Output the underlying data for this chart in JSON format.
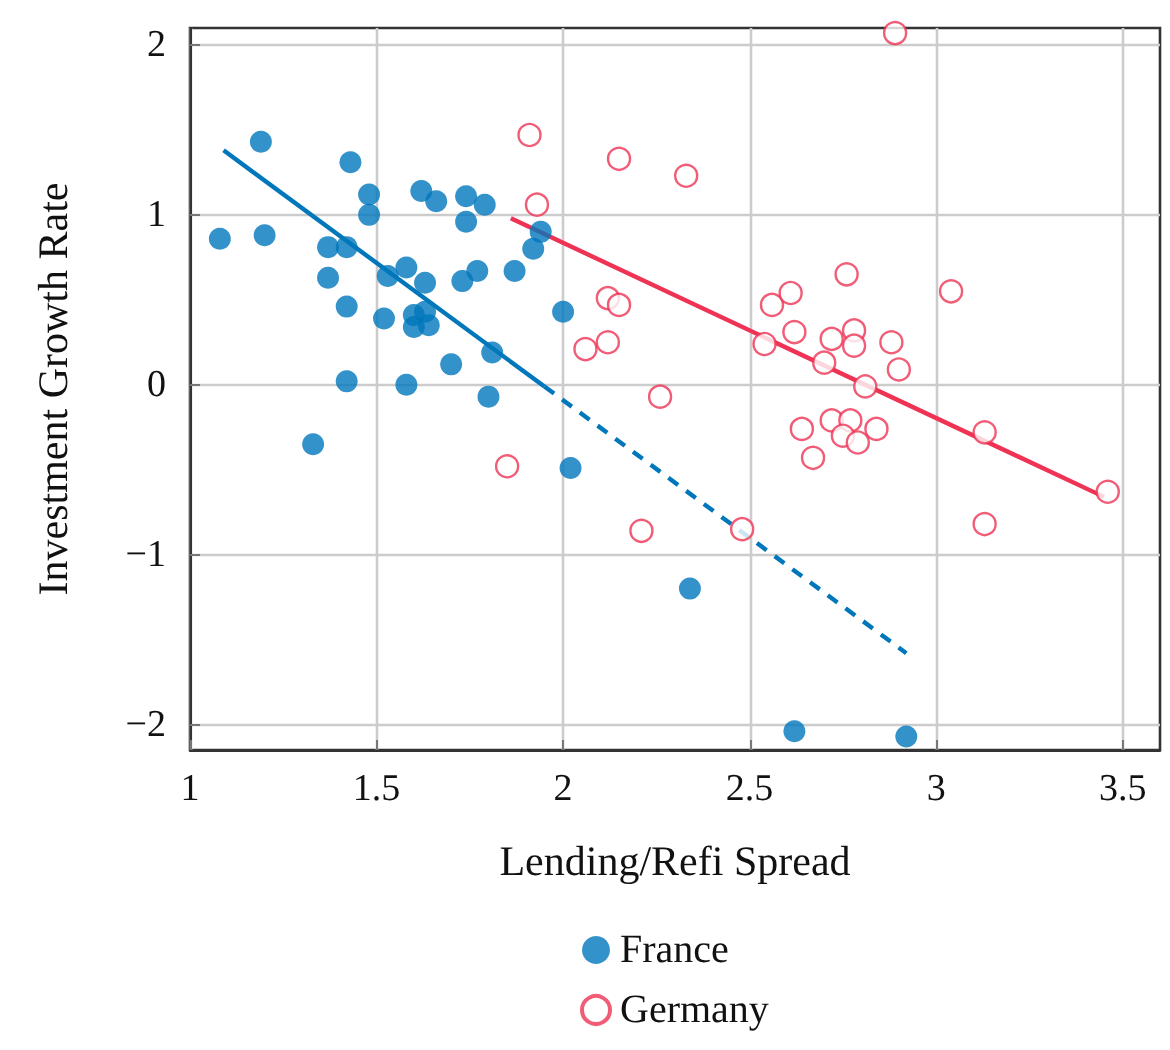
{
  "chart_data": {
    "type": "scatter",
    "xlabel": "Lending/Refi Spread",
    "ylabel": "Investment Growth Rate",
    "xlim": [
      1,
      3.6
    ],
    "ylim": [
      -2.15,
      2.1
    ],
    "xticks": [
      1,
      1.5,
      2,
      2.5,
      3,
      3.5
    ],
    "yticks": [
      {
        "value": -2,
        "label": "−2"
      },
      {
        "value": -1,
        "label": "−1"
      },
      0,
      1,
      2
    ],
    "grid": true,
    "legend": "bottom",
    "series": [
      {
        "name": "France",
        "color": "#0077bb",
        "marker": "circle",
        "x": [
          1.08,
          1.19,
          1.2,
          1.33,
          1.37,
          1.37,
          1.42,
          1.42,
          1.42,
          1.43,
          1.48,
          1.48,
          1.52,
          1.53,
          1.58,
          1.58,
          1.6,
          1.6,
          1.62,
          1.63,
          1.63,
          1.64,
          1.66,
          1.7,
          1.73,
          1.74,
          1.74,
          1.77,
          1.79,
          1.8,
          1.81,
          1.87,
          1.92,
          1.94,
          2.0,
          2.02,
          2.34,
          2.62,
          2.92
        ],
        "values": [
          0.86,
          1.43,
          0.88,
          -0.35,
          0.81,
          0.63,
          0.02,
          0.46,
          0.81,
          1.31,
          1.12,
          1.0,
          0.39,
          0.64,
          0.69,
          0.0,
          0.34,
          0.41,
          1.14,
          0.6,
          0.43,
          0.35,
          1.08,
          0.12,
          0.61,
          1.11,
          0.96,
          0.67,
          1.06,
          -0.07,
          0.19,
          0.67,
          0.8,
          0.9,
          0.43,
          -0.49,
          -1.2,
          -2.04,
          -2.07
        ]
      },
      {
        "name": "Germany",
        "color": "#ee3355",
        "marker": "circle",
        "x": [
          2.89,
          1.91,
          2.15,
          2.33,
          1.93,
          2.76,
          3.04,
          2.12,
          2.15,
          2.56,
          2.61,
          2.62,
          2.72,
          2.78,
          2.78,
          2.88,
          2.9,
          2.06,
          2.12,
          2.54,
          2.7,
          2.81,
          2.26,
          2.64,
          2.72,
          2.77,
          2.75,
          2.79,
          2.84,
          2.67,
          3.13,
          3.46,
          1.85,
          2.21,
          2.48,
          3.13
        ],
        "values": [
          2.07,
          1.47,
          1.33,
          1.23,
          1.06,
          0.65,
          0.55,
          0.51,
          0.47,
          0.47,
          0.54,
          0.31,
          0.27,
          0.32,
          0.23,
          0.25,
          0.09,
          0.21,
          0.25,
          0.24,
          0.13,
          -0.01,
          -0.07,
          -0.26,
          -0.21,
          -0.21,
          -0.3,
          -0.34,
          -0.26,
          -0.43,
          -0.28,
          -0.63,
          -0.48,
          -0.86,
          -0.85,
          -0.82
        ]
      },
      {
        "type": "line",
        "color": "#0077bb",
        "marker": "none",
        "line_style": "solid",
        "x": [
          1.09,
          1.95
        ],
        "values": [
          1.38,
          -0.01
        ]
      },
      {
        "type": "line",
        "color": "#0077bb",
        "marker": "none",
        "line_style": "dashed",
        "x": [
          1.95,
          2.92
        ],
        "values": [
          -0.01,
          -1.58
        ]
      },
      {
        "type": "line",
        "color": "#ee3355",
        "marker": "none",
        "line_style": "solid",
        "x": [
          1.86,
          3.45
        ],
        "values": [
          0.98,
          -0.66
        ]
      }
    ]
  }
}
